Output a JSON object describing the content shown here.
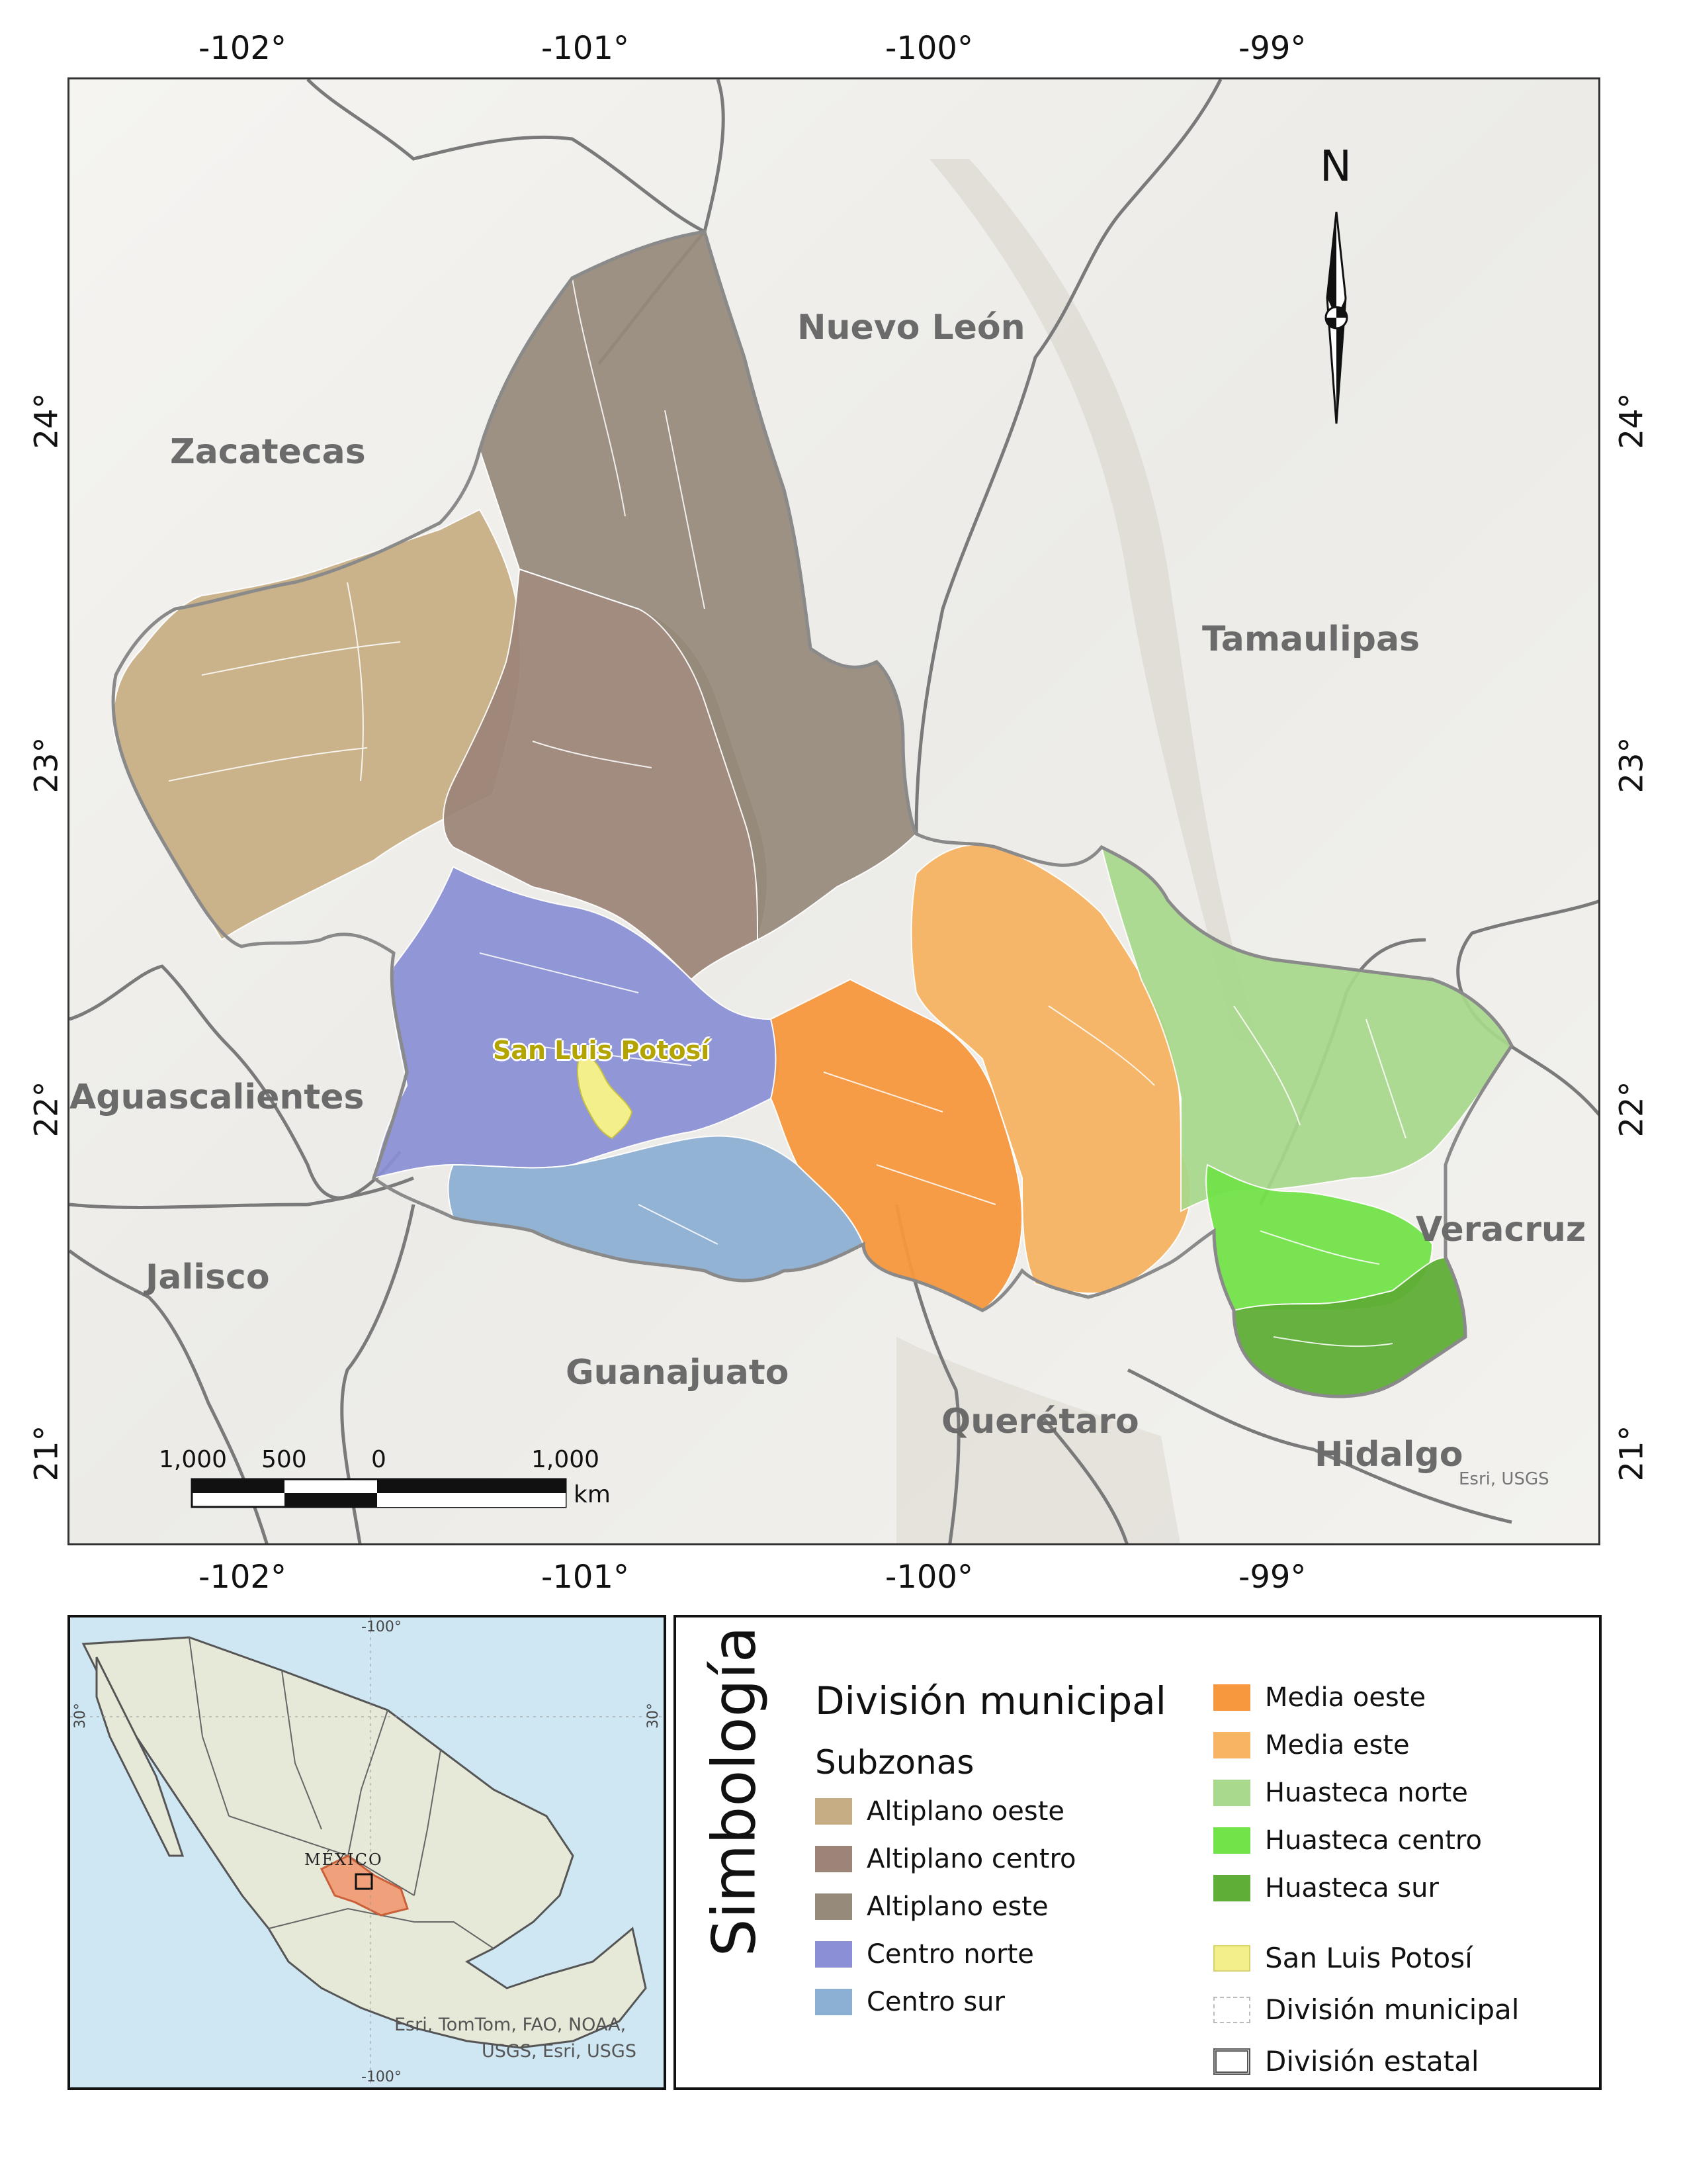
{
  "map": {
    "lon_ticks": [
      "-102°",
      "-101°",
      "-100°",
      "-99°"
    ],
    "lat_ticks": [
      "24°",
      "23°",
      "22°",
      "21°"
    ],
    "north_label": "N",
    "states": {
      "nuevo_leon": "Nuevo León",
      "zacatecas": "Zacatecas",
      "tamaulipas": "Tamaulipas",
      "aguascalientes": "Aguascalientes",
      "jalisco": "Jalisco",
      "guanajuato": "Guanajuato",
      "queretaro": "Querétaro",
      "hidalgo": "Hidalgo",
      "veracruz": "Veracruz"
    },
    "city": "San Luis Potosí",
    "attribution": "Esri, USGS",
    "scale_bar": {
      "labels": [
        "1,000",
        "500",
        "0",
        "1,000"
      ],
      "unit": "km"
    },
    "colors": {
      "altiplano_oeste": "#c7ad83",
      "altiplano_centro": "#9c8478",
      "altiplano_este": "#968a7b",
      "centro_norte": "#8a8fd6",
      "centro_sur": "#8cafd4",
      "media_oeste": "#f7983e",
      "media_este": "#f7b463",
      "huasteca_norte": "#a8d98c",
      "huasteca_centro": "#73e34a",
      "huasteca_sur": "#5fae37",
      "city": "#f3f08c"
    }
  },
  "inset": {
    "lon_top": "-100°",
    "lon_bottom": "-100°",
    "lat_left": "30°",
    "lat_right": "30°",
    "country": "MÉXICO",
    "attribution_line1": "Esri, TomTom, FAO, NOAA,",
    "attribution_line2": "USGS, Esri, USGS"
  },
  "legend": {
    "title": "Simbología",
    "heading": "División municipal",
    "subheading": "Subzonas",
    "items_left": [
      {
        "label": "Altiplano oeste",
        "color": "#c7ad83"
      },
      {
        "label": "Altiplano centro",
        "color": "#9c8478"
      },
      {
        "label": "Altiplano este",
        "color": "#968a7b"
      },
      {
        "label": "Centro norte",
        "color": "#8a8fd6"
      },
      {
        "label": "Centro sur",
        "color": "#8cafd4"
      }
    ],
    "items_right": [
      {
        "label": "Media oeste",
        "color": "#f7983e"
      },
      {
        "label": "Media este",
        "color": "#f7b463"
      },
      {
        "label": "Huasteca norte",
        "color": "#a8d98c"
      },
      {
        "label": "Huasteca centro",
        "color": "#73e34a"
      },
      {
        "label": "Huasteca sur",
        "color": "#5fae37"
      }
    ],
    "city_item": "San Luis Potosí",
    "municipal_item": "División municipal",
    "state_item": "División estatal"
  }
}
